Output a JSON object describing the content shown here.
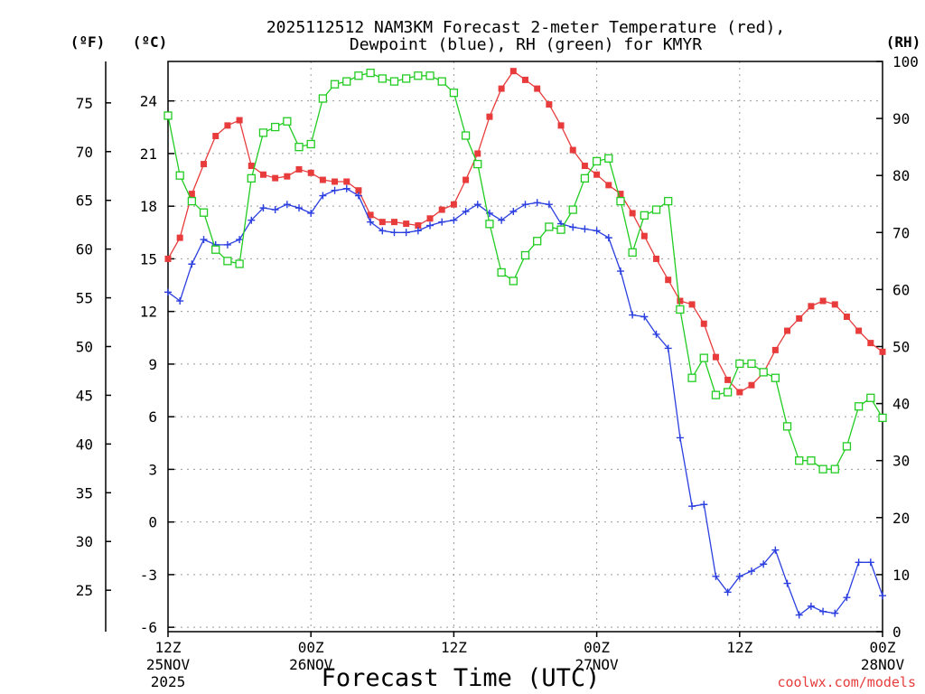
{
  "chart_data": {
    "type": "line",
    "title_line1": "2025112512 NAM3KM Forecast 2-meter Temperature (red),",
    "title_line2": "Dewpoint (blue), RH (green) for KMYR",
    "unit_f": "(ºF)",
    "unit_c": "(ºC)",
    "unit_rh": "(RH)",
    "xlabel": "Forecast Time (UTC)",
    "credit": "coolwx.com/models",
    "x_range": [
      0,
      60
    ],
    "c_range": [
      -6.25,
      26.25
    ],
    "rh_range": [
      0,
      100
    ],
    "f_ticks": [
      {
        "label": "75",
        "value": 75
      },
      {
        "label": "70",
        "value": 70
      },
      {
        "label": "65",
        "value": 65
      },
      {
        "label": "60",
        "value": 60
      },
      {
        "label": "55",
        "value": 55
      },
      {
        "label": "50",
        "value": 50
      },
      {
        "label": "45",
        "value": 45
      },
      {
        "label": "40",
        "value": 40
      },
      {
        "label": "35",
        "value": 35
      },
      {
        "label": "30",
        "value": 30
      },
      {
        "label": "25",
        "value": 25
      }
    ],
    "c_ticks": [
      {
        "label": "24",
        "value": 24
      },
      {
        "label": "21",
        "value": 21
      },
      {
        "label": "18",
        "value": 18
      },
      {
        "label": "15",
        "value": 15
      },
      {
        "label": "12",
        "value": 12
      },
      {
        "label": "9",
        "value": 9
      },
      {
        "label": "6",
        "value": 6
      },
      {
        "label": "3",
        "value": 3
      },
      {
        "label": "0",
        "value": 0
      },
      {
        "label": "-3",
        "value": -3
      },
      {
        "label": "-6",
        "value": -6
      }
    ],
    "rh_ticks": [
      {
        "label": "100",
        "value": 100
      },
      {
        "label": "90",
        "value": 90
      },
      {
        "label": "80",
        "value": 80
      },
      {
        "label": "70",
        "value": 70
      },
      {
        "label": "60",
        "value": 60
      },
      {
        "label": "50",
        "value": 50
      },
      {
        "label": "40",
        "value": 40
      },
      {
        "label": "30",
        "value": 30
      },
      {
        "label": "20",
        "value": 20
      },
      {
        "label": "10",
        "value": 10
      },
      {
        "label": "0",
        "value": 0
      }
    ],
    "x_ticks": [
      {
        "hour": 0,
        "l1": "12Z",
        "l2": "25NOV",
        "l3": "2025"
      },
      {
        "hour": 12,
        "l1": "00Z",
        "l2": "26NOV",
        "l3": ""
      },
      {
        "hour": 24,
        "l1": "12Z",
        "l2": "",
        "l3": ""
      },
      {
        "hour": 36,
        "l1": "00Z",
        "l2": "27NOV",
        "l3": ""
      },
      {
        "hour": 48,
        "l1": "12Z",
        "l2": "",
        "l3": ""
      },
      {
        "hour": 60,
        "l1": "00Z",
        "l2": "28NOV",
        "l3": ""
      }
    ],
    "series": [
      {
        "name": "Temperature",
        "unit": "C",
        "color": "#e83c3c",
        "marker": "filled-square",
        "points": [
          [
            0,
            15
          ],
          [
            1,
            16.2
          ],
          [
            2,
            18.7
          ],
          [
            3,
            20.4
          ],
          [
            4,
            22
          ],
          [
            5,
            22.6
          ],
          [
            6,
            22.9
          ],
          [
            7,
            20.3
          ],
          [
            8,
            19.8
          ],
          [
            9,
            19.6
          ],
          [
            10,
            19.7
          ],
          [
            11,
            20.1
          ],
          [
            12,
            19.9
          ],
          [
            13,
            19.5
          ],
          [
            14,
            19.4
          ],
          [
            15,
            19.4
          ],
          [
            16,
            18.9
          ],
          [
            17,
            17.5
          ],
          [
            18,
            17.1
          ],
          [
            19,
            17.1
          ],
          [
            20,
            17
          ],
          [
            21,
            16.9
          ],
          [
            22,
            17.3
          ],
          [
            23,
            17.8
          ],
          [
            24,
            18.1
          ],
          [
            25,
            19.5
          ],
          [
            26,
            21
          ],
          [
            27,
            23.1
          ],
          [
            28,
            24.7
          ],
          [
            29,
            25.7
          ],
          [
            30,
            25.2
          ],
          [
            31,
            24.7
          ],
          [
            32,
            23.8
          ],
          [
            33,
            22.6
          ],
          [
            34,
            21.2
          ],
          [
            35,
            20.3
          ],
          [
            36,
            19.8
          ],
          [
            37,
            19.2
          ],
          [
            38,
            18.7
          ],
          [
            39,
            17.6
          ],
          [
            40,
            16.3
          ],
          [
            41,
            15
          ],
          [
            42,
            13.8
          ],
          [
            43,
            12.6
          ],
          [
            44,
            12.4
          ],
          [
            45,
            11.3
          ],
          [
            46,
            9.4
          ],
          [
            47,
            8.1
          ],
          [
            48,
            7.4
          ],
          [
            49,
            7.8
          ],
          [
            50,
            8.5
          ],
          [
            51,
            9.8
          ],
          [
            52,
            10.9
          ],
          [
            53,
            11.6
          ],
          [
            54,
            12.3
          ],
          [
            55,
            12.6
          ],
          [
            56,
            12.4
          ],
          [
            57,
            11.7
          ],
          [
            58,
            10.9
          ],
          [
            59,
            10.2
          ],
          [
            60,
            9.7
          ]
        ]
      },
      {
        "name": "Dewpoint",
        "unit": "C",
        "color": "#2b3fe0",
        "marker": "plus",
        "points": [
          [
            0,
            13.1
          ],
          [
            1,
            12.6
          ],
          [
            2,
            14.7
          ],
          [
            3,
            16.1
          ],
          [
            4,
            15.8
          ],
          [
            5,
            15.8
          ],
          [
            6,
            16.1
          ],
          [
            7,
            17.2
          ],
          [
            8,
            17.9
          ],
          [
            9,
            17.8
          ],
          [
            10,
            18.1
          ],
          [
            11,
            17.9
          ],
          [
            12,
            17.6
          ],
          [
            13,
            18.6
          ],
          [
            14,
            18.9
          ],
          [
            15,
            19
          ],
          [
            16,
            18.6
          ],
          [
            17,
            17.1
          ],
          [
            18,
            16.6
          ],
          [
            19,
            16.5
          ],
          [
            20,
            16.5
          ],
          [
            21,
            16.6
          ],
          [
            22,
            16.9
          ],
          [
            23,
            17.1
          ],
          [
            24,
            17.2
          ],
          [
            25,
            17.7
          ],
          [
            26,
            18.1
          ],
          [
            27,
            17.6
          ],
          [
            28,
            17.2
          ],
          [
            29,
            17.7
          ],
          [
            30,
            18.1
          ],
          [
            31,
            18.2
          ],
          [
            32,
            18.1
          ],
          [
            33,
            17
          ],
          [
            34,
            16.8
          ],
          [
            35,
            16.7
          ],
          [
            36,
            16.6
          ],
          [
            37,
            16.2
          ],
          [
            38,
            14.3
          ],
          [
            39,
            11.8
          ],
          [
            40,
            11.7
          ],
          [
            41,
            10.7
          ],
          [
            42,
            9.9
          ],
          [
            43,
            4.8
          ],
          [
            44,
            0.9
          ],
          [
            45,
            1
          ],
          [
            46,
            -3.1
          ],
          [
            47,
            -4
          ],
          [
            48,
            -3.1
          ],
          [
            49,
            -2.8
          ],
          [
            50,
            -2.4
          ],
          [
            51,
            -1.6
          ],
          [
            52,
            -3.5
          ],
          [
            53,
            -5.3
          ],
          [
            54,
            -4.8
          ],
          [
            55,
            -5.1
          ],
          [
            56,
            -5.2
          ],
          [
            57,
            -4.3
          ],
          [
            58,
            -2.3
          ],
          [
            59,
            -2.3
          ],
          [
            60,
            -4.2
          ]
        ]
      },
      {
        "name": "RH",
        "unit": "%",
        "color": "#22cc22",
        "marker": "open-square",
        "points": [
          [
            0,
            90.5
          ],
          [
            1,
            80
          ],
          [
            2,
            75.5
          ],
          [
            3,
            73.5
          ],
          [
            4,
            67
          ],
          [
            5,
            65
          ],
          [
            6,
            64.5
          ],
          [
            7,
            79.5
          ],
          [
            8,
            87.5
          ],
          [
            9,
            88.5
          ],
          [
            10,
            89.5
          ],
          [
            11,
            85
          ],
          [
            12,
            85.5
          ],
          [
            13,
            93.5
          ],
          [
            14,
            96
          ],
          [
            15,
            96.5
          ],
          [
            16,
            97.5
          ],
          [
            17,
            98
          ],
          [
            18,
            97
          ],
          [
            19,
            96.5
          ],
          [
            20,
            97
          ],
          [
            21,
            97.5
          ],
          [
            22,
            97.5
          ],
          [
            23,
            96.5
          ],
          [
            24,
            94.5
          ],
          [
            25,
            87
          ],
          [
            26,
            82
          ],
          [
            27,
            71.5
          ],
          [
            28,
            63
          ],
          [
            29,
            61.5
          ],
          [
            30,
            66
          ],
          [
            31,
            68.5
          ],
          [
            32,
            71
          ],
          [
            33,
            70.5
          ],
          [
            34,
            74
          ],
          [
            35,
            79.5
          ],
          [
            36,
            82.5
          ],
          [
            37,
            83
          ],
          [
            38,
            75.5
          ],
          [
            39,
            66.5
          ],
          [
            40,
            73
          ],
          [
            41,
            74
          ],
          [
            42,
            75.5
          ],
          [
            43,
            56.5
          ],
          [
            44,
            44.5
          ],
          [
            45,
            48
          ],
          [
            46,
            41.5
          ],
          [
            47,
            42
          ],
          [
            48,
            47
          ],
          [
            49,
            47
          ],
          [
            50,
            45.5
          ],
          [
            51,
            44.5
          ],
          [
            52,
            36
          ],
          [
            53,
            30
          ],
          [
            54,
            30
          ],
          [
            55,
            28.5
          ],
          [
            56,
            28.5
          ],
          [
            57,
            32.5
          ],
          [
            58,
            39.5
          ],
          [
            59,
            41
          ],
          [
            60,
            37.5
          ]
        ]
      }
    ]
  }
}
